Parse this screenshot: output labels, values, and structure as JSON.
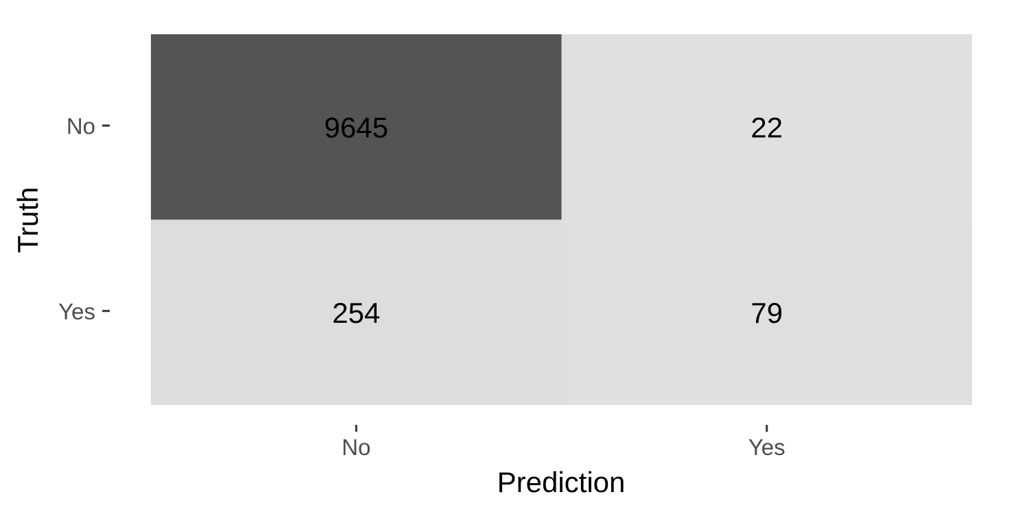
{
  "chart_data": {
    "type": "heatmap",
    "title": "",
    "xlabel": "Prediction",
    "ylabel": "Truth",
    "x_categories": [
      "No",
      "Yes"
    ],
    "y_categories": [
      "No",
      "Yes"
    ],
    "matrix": [
      [
        9645,
        22
      ],
      [
        254,
        79
      ]
    ],
    "color_low": "#e0e0e0",
    "color_high": "#545454",
    "grid": false,
    "legend": "none"
  }
}
